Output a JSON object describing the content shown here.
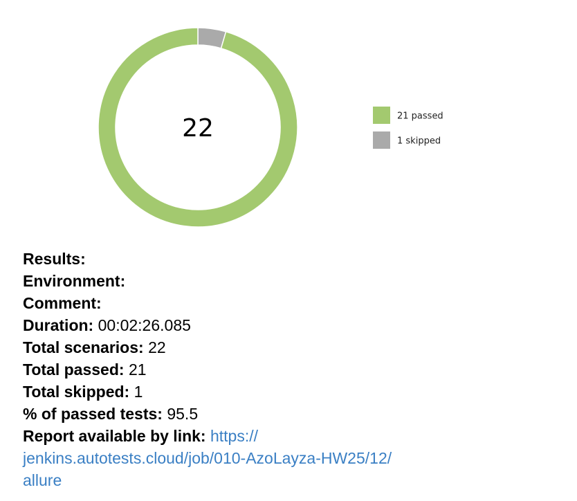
{
  "chart_data": {
    "type": "pie",
    "donut": true,
    "center_label": "22",
    "slices": [
      {
        "label": "passed",
        "value": 21,
        "color": "#a3c96f"
      },
      {
        "label": "skipped",
        "value": 1,
        "color": "#aaaaaa"
      }
    ],
    "legend": [
      {
        "text": "21 passed",
        "color": "#a3c96f"
      },
      {
        "text": "1 skipped",
        "color": "#aaaaaa"
      }
    ],
    "legend_position": "right"
  },
  "summary": {
    "results_label": "Results:",
    "environment_label": "Environment:",
    "comment_label": "Comment:",
    "duration_label": "Duration:",
    "duration_value": "00:02:26.085",
    "total_scenarios_label": "Total scenarios:",
    "total_scenarios_value": "22",
    "total_passed_label": "Total passed:",
    "total_passed_value": "21",
    "total_skipped_label": "Total skipped:",
    "total_skipped_value": "1",
    "percent_label": "% of passed tests:",
    "percent_value": "95.5",
    "report_label": "Report available by link:",
    "report_link_line1": "https://",
    "report_link_line2": "jenkins.autotests.cloud/job/010-AzoLayza-HW25/12/",
    "report_link_line3": "allure"
  }
}
